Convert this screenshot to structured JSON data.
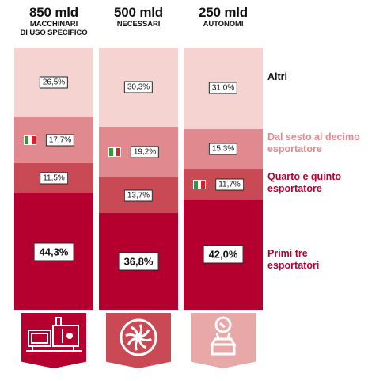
{
  "chart_data": {
    "type": "stacked-bar",
    "columns": [
      {
        "value": "850 mld",
        "subtitle": [
          "MACCHINARI",
          "DI USO SPECIFICO"
        ],
        "icon": "machinery-icon",
        "values": {
          "top3": "44,3%",
          "q45": "11,5%",
          "s610": "17,7%",
          "altri": "26,5%"
        },
        "italy_segment": "s610"
      },
      {
        "value": "500 mld",
        "subtitle": [
          "NECESSARI"
        ],
        "icon": "fan-icon",
        "values": {
          "top3": "36,8%",
          "q45": "13,7%",
          "s610": "19,2%",
          "altri": "30,3%"
        },
        "italy_segment": "s610"
      },
      {
        "value": "250 mld",
        "subtitle": [
          "AUTONOMI"
        ],
        "icon": "tool-icon",
        "values": {
          "top3": "42,0%",
          "q45": "11,7%",
          "s610": "15,3%",
          "altri": "31,0%"
        },
        "italy_segment": "q45"
      }
    ],
    "series": [
      {
        "key": "top3",
        "name": [
          "Primi tre",
          "esportatori"
        ],
        "color": "#b5002f"
      },
      {
        "key": "q45",
        "name": [
          "Quarto e quinto",
          "esportatore"
        ],
        "color": "#c94a55"
      },
      {
        "key": "s610",
        "name": [
          "Dal sesto al decimo",
          "esportatore"
        ],
        "color": "#e08a8f"
      },
      {
        "key": "altri",
        "name": [
          "Altri"
        ],
        "color": "#f4d3d1"
      }
    ],
    "legend_text_colors": {
      "top3": "#b5002f",
      "q45": "#b5002f",
      "s610": "#e08a8f",
      "altri": "#111111"
    },
    "icon_colors": [
      "#b5002f",
      "#c94a55",
      "#e8a8a8"
    ],
    "flag_colors": [
      "#2e9a3c",
      "#ffffff",
      "#d2232a"
    ]
  }
}
